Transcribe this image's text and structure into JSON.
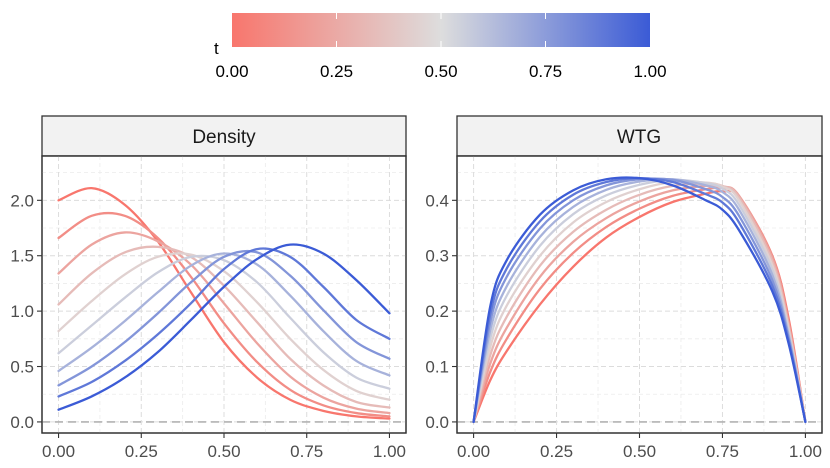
{
  "chart_data": {
    "type": "line",
    "legend": {
      "title": "t",
      "position": "top",
      "ticks": [
        "0.00",
        "0.25",
        "0.50",
        "0.75",
        "1.00"
      ],
      "color_low": "#F8766D",
      "color_mid": "#DDDDDD",
      "color_high": "#3B5BD6"
    },
    "t_values": [
      0.0,
      0.111,
      0.222,
      0.333,
      0.444,
      0.556,
      0.667,
      0.778,
      0.889,
      1.0
    ],
    "panels": [
      {
        "name": "density",
        "strip": "Density",
        "xlim": [
          -0.05,
          1.05
        ],
        "ylim": [
          -0.1,
          2.4
        ],
        "x_ticks": [
          0,
          0.25,
          0.5,
          0.75,
          1
        ],
        "x_tick_labels": [
          "0.00",
          "0.25",
          "0.50",
          "0.75",
          "1.00"
        ],
        "y_ticks": [
          0,
          0.5,
          1,
          1.5,
          2
        ],
        "y_tick_labels": [
          "0.0",
          "0.5",
          "1.0",
          "1.5",
          "2.0"
        ],
        "reference_line": 0,
        "x": [
          0,
          0.1,
          0.2,
          0.3,
          0.4,
          0.5,
          0.6,
          0.7,
          0.8,
          0.9,
          1.0
        ],
        "series": [
          {
            "t": 0.0,
            "values": [
              2.0,
              2.11,
              1.96,
              1.63,
              1.17,
              0.72,
              0.4,
              0.2,
              0.1,
              0.05,
              0.03
            ]
          },
          {
            "t": 0.111,
            "values": [
              1.66,
              1.86,
              1.86,
              1.66,
              1.31,
              0.89,
              0.54,
              0.29,
              0.15,
              0.08,
              0.05
            ]
          },
          {
            "t": 0.222,
            "values": [
              1.34,
              1.6,
              1.71,
              1.63,
              1.42,
              1.07,
              0.71,
              0.41,
              0.22,
              0.12,
              0.08
            ]
          },
          {
            "t": 0.333,
            "values": [
              1.06,
              1.34,
              1.53,
              1.58,
              1.49,
              1.23,
              0.9,
              0.57,
              0.33,
              0.18,
              0.13
            ]
          },
          {
            "t": 0.444,
            "values": [
              0.82,
              1.09,
              1.33,
              1.49,
              1.51,
              1.36,
              1.08,
              0.75,
              0.47,
              0.28,
              0.2
            ]
          },
          {
            "t": 0.556,
            "values": [
              0.62,
              0.87,
              1.12,
              1.35,
              1.49,
              1.46,
              1.26,
              0.94,
              0.63,
              0.4,
              0.3
            ]
          },
          {
            "t": 0.667,
            "values": [
              0.46,
              0.67,
              0.91,
              1.17,
              1.41,
              1.52,
              1.42,
              1.14,
              0.82,
              0.55,
              0.42
            ]
          },
          {
            "t": 0.778,
            "values": [
              0.33,
              0.5,
              0.72,
              0.98,
              1.26,
              1.49,
              1.53,
              1.32,
              1.01,
              0.72,
              0.57
            ]
          },
          {
            "t": 0.889,
            "values": [
              0.23,
              0.36,
              0.55,
              0.79,
              1.07,
              1.38,
              1.56,
              1.49,
              1.22,
              0.92,
              0.75
            ]
          },
          {
            "t": 1.0,
            "values": [
              0.11,
              0.23,
              0.4,
              0.63,
              0.92,
              1.22,
              1.47,
              1.6,
              1.52,
              1.28,
              0.98
            ]
          }
        ]
      },
      {
        "name": "wtg",
        "strip": "WTG",
        "xlim": [
          -0.05,
          1.05
        ],
        "ylim": [
          -0.02,
          0.48
        ],
        "x_ticks": [
          0,
          0.25,
          0.5,
          0.75,
          1
        ],
        "x_tick_labels": [
          "0.00",
          "0.25",
          "0.50",
          "0.75",
          "1.00"
        ],
        "y_ticks": [
          0,
          0.1,
          0.2,
          0.3,
          0.4
        ],
        "y_tick_labels": [
          "0.0",
          "0.1",
          "0.2",
          "0.3",
          "0.4"
        ],
        "reference_line": 0,
        "x": [
          0,
          0.05,
          0.1,
          0.2,
          0.3,
          0.4,
          0.5,
          0.6,
          0.7,
          0.75,
          0.8,
          0.9,
          0.95,
          1.0
        ],
        "series": [
          {
            "t": 0.0,
            "values": [
              0,
              0.075,
              0.128,
              0.212,
              0.28,
              0.333,
              0.37,
              0.397,
              0.412,
              0.416,
              0.405,
              0.3,
              0.185,
              0
            ]
          },
          {
            "t": 0.111,
            "values": [
              0,
              0.09,
              0.15,
              0.24,
              0.305,
              0.352,
              0.385,
              0.408,
              0.42,
              0.422,
              0.408,
              0.3,
              0.18,
              0
            ]
          },
          {
            "t": 0.222,
            "values": [
              0,
              0.105,
              0.17,
              0.262,
              0.325,
              0.368,
              0.398,
              0.418,
              0.426,
              0.425,
              0.408,
              0.296,
              0.175,
              0
            ]
          },
          {
            "t": 0.333,
            "values": [
              0,
              0.12,
              0.19,
              0.282,
              0.343,
              0.383,
              0.41,
              0.426,
              0.43,
              0.426,
              0.405,
              0.29,
              0.17,
              0
            ]
          },
          {
            "t": 0.444,
            "values": [
              0,
              0.135,
              0.21,
              0.3,
              0.36,
              0.397,
              0.42,
              0.433,
              0.432,
              0.425,
              0.4,
              0.283,
              0.165,
              0
            ]
          },
          {
            "t": 0.556,
            "values": [
              0,
              0.15,
              0.228,
              0.318,
              0.375,
              0.409,
              0.428,
              0.437,
              0.431,
              0.421,
              0.392,
              0.275,
              0.16,
              0
            ]
          },
          {
            "t": 0.667,
            "values": [
              0,
              0.165,
              0.245,
              0.334,
              0.388,
              0.419,
              0.434,
              0.438,
              0.427,
              0.415,
              0.383,
              0.266,
              0.155,
              0
            ]
          },
          {
            "t": 0.778,
            "values": [
              0,
              0.18,
              0.262,
              0.349,
              0.4,
              0.427,
              0.438,
              0.437,
              0.42,
              0.406,
              0.372,
              0.256,
              0.15,
              0
            ]
          },
          {
            "t": 0.889,
            "values": [
              0,
              0.194,
              0.277,
              0.362,
              0.41,
              0.433,
              0.44,
              0.433,
              0.411,
              0.396,
              0.36,
              0.246,
              0.145,
              0
            ]
          },
          {
            "t": 1.0,
            "values": [
              0,
              0.208,
              0.292,
              0.374,
              0.418,
              0.438,
              0.44,
              0.427,
              0.4,
              0.383,
              0.346,
              0.236,
              0.14,
              0
            ]
          }
        ]
      }
    ]
  }
}
